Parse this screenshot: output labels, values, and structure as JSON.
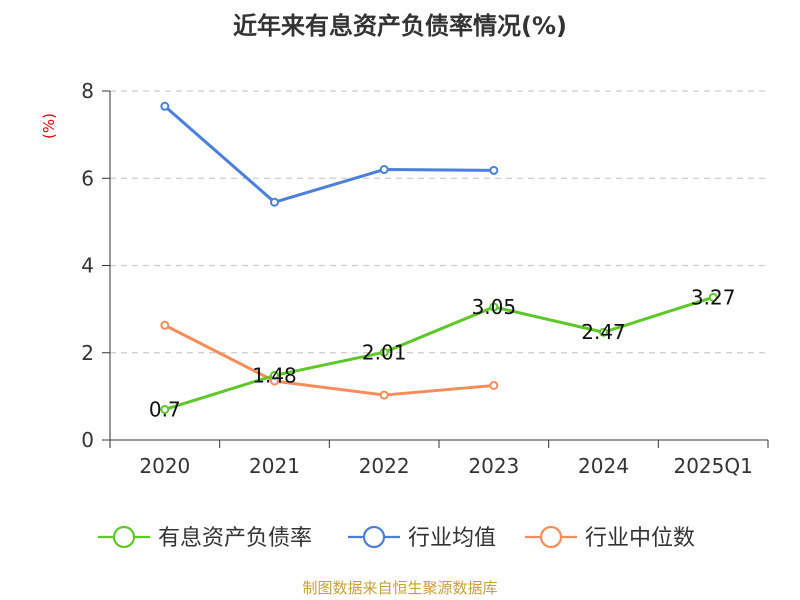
{
  "chart_data": {
    "type": "line",
    "title": "近年来有息资产负债率情况(%)",
    "ylabel": "(%)",
    "xlabel": "",
    "categories": [
      "2020",
      "2021",
      "2022",
      "2023",
      "2024",
      "2025Q1"
    ],
    "ylim": [
      0,
      8
    ],
    "yticks": [
      0,
      2,
      4,
      6,
      8
    ],
    "grid": true,
    "legend_position": "bottom",
    "series": [
      {
        "name": "有息资产负债率",
        "color": "#5ec72a",
        "values": [
          0.7,
          1.48,
          2.01,
          3.05,
          2.47,
          3.27
        ],
        "labels": [
          "0.7",
          "1.48",
          "2.01",
          "3.05",
          "2.47",
          "3.27"
        ]
      },
      {
        "name": "行业均值",
        "color": "#4a7fdc",
        "values": [
          7.65,
          5.45,
          6.2,
          6.18,
          null,
          null
        ]
      },
      {
        "name": "行业中位数",
        "color": "#f58d5a",
        "values": [
          2.63,
          1.35,
          1.03,
          1.25,
          null,
          null
        ]
      }
    ],
    "source": "制图数据来自恒生聚源数据库"
  }
}
